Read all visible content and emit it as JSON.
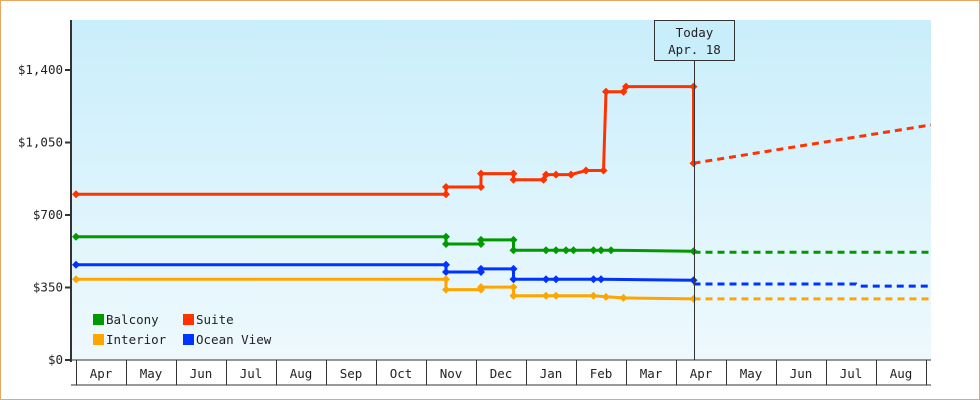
{
  "chart_data": {
    "type": "line",
    "title": "",
    "xlabel": "",
    "ylabel": "",
    "ylim": [
      0,
      1680
    ],
    "y_ticks": [
      {
        "value": 0,
        "label": "$0"
      },
      {
        "value": 350,
        "label": "$350"
      },
      {
        "value": 700,
        "label": "$700"
      },
      {
        "value": 1050,
        "label": "$1,050"
      },
      {
        "value": 1400,
        "label": "$1,400"
      }
    ],
    "x_months": [
      "Apr",
      "May",
      "Jun",
      "Jul",
      "Aug",
      "Sep",
      "Oct",
      "Nov",
      "Dec",
      "Jan",
      "Feb",
      "Mar",
      "Apr",
      "May",
      "Jun",
      "Jul",
      "Aug"
    ],
    "today_marker": {
      "line1": "Today",
      "line2": "Apr. 18",
      "x_month_index": 12.35
    },
    "grid": false,
    "legend_position": "lower-left",
    "legend": [
      {
        "name": "Balcony",
        "color": "#009a00"
      },
      {
        "name": "Suite",
        "color": "#ff3300"
      },
      {
        "name": "Interior",
        "color": "#ffa500"
      },
      {
        "name": "Ocean View",
        "color": "#0033ff"
      }
    ],
    "series": [
      {
        "name": "Suite",
        "color": "#ff3300",
        "points": [
          {
            "m": 0.0,
            "v": 800
          },
          {
            "m": 7.4,
            "v": 800
          },
          {
            "m": 7.4,
            "v": 835
          },
          {
            "m": 8.1,
            "v": 835
          },
          {
            "m": 8.1,
            "v": 900
          },
          {
            "m": 8.75,
            "v": 900
          },
          {
            "m": 8.75,
            "v": 870
          },
          {
            "m": 9.35,
            "v": 870
          },
          {
            "m": 9.4,
            "v": 895
          },
          {
            "m": 9.6,
            "v": 895
          },
          {
            "m": 9.9,
            "v": 895
          },
          {
            "m": 10.2,
            "v": 915
          },
          {
            "m": 10.55,
            "v": 915
          },
          {
            "m": 10.6,
            "v": 1295
          },
          {
            "m": 10.95,
            "v": 1295
          },
          {
            "m": 11.0,
            "v": 1320
          },
          {
            "m": 12.35,
            "v": 1320
          },
          {
            "m": 12.35,
            "v": 950
          }
        ],
        "projection": [
          {
            "m": 12.35,
            "v": 950
          },
          {
            "m": 17.1,
            "v": 1135
          }
        ]
      },
      {
        "name": "Balcony",
        "color": "#009a00",
        "points": [
          {
            "m": 0.0,
            "v": 595
          },
          {
            "m": 7.4,
            "v": 595
          },
          {
            "m": 7.4,
            "v": 560
          },
          {
            "m": 8.1,
            "v": 560
          },
          {
            "m": 8.1,
            "v": 580
          },
          {
            "m": 8.75,
            "v": 580
          },
          {
            "m": 8.75,
            "v": 530
          },
          {
            "m": 9.4,
            "v": 530
          },
          {
            "m": 9.6,
            "v": 530
          },
          {
            "m": 9.8,
            "v": 530
          },
          {
            "m": 9.95,
            "v": 530
          },
          {
            "m": 10.35,
            "v": 530
          },
          {
            "m": 10.5,
            "v": 530
          },
          {
            "m": 10.7,
            "v": 530
          },
          {
            "m": 12.35,
            "v": 525
          }
        ],
        "projection": [
          {
            "m": 12.35,
            "v": 520
          },
          {
            "m": 17.1,
            "v": 520
          }
        ]
      },
      {
        "name": "Ocean View",
        "color": "#0033ff",
        "points": [
          {
            "m": 0.0,
            "v": 460
          },
          {
            "m": 7.4,
            "v": 460
          },
          {
            "m": 7.4,
            "v": 425
          },
          {
            "m": 8.1,
            "v": 425
          },
          {
            "m": 8.1,
            "v": 440
          },
          {
            "m": 8.75,
            "v": 440
          },
          {
            "m": 8.75,
            "v": 390
          },
          {
            "m": 9.4,
            "v": 390
          },
          {
            "m": 9.6,
            "v": 390
          },
          {
            "m": 10.35,
            "v": 390
          },
          {
            "m": 10.5,
            "v": 390
          },
          {
            "m": 12.35,
            "v": 385
          }
        ],
        "projection": [
          {
            "m": 12.35,
            "v": 367
          },
          {
            "m": 15.6,
            "v": 367
          },
          {
            "m": 15.65,
            "v": 357
          },
          {
            "m": 17.1,
            "v": 357
          }
        ]
      },
      {
        "name": "Interior",
        "color": "#ffa500",
        "points": [
          {
            "m": 0.0,
            "v": 390
          },
          {
            "m": 7.4,
            "v": 390
          },
          {
            "m": 7.4,
            "v": 340
          },
          {
            "m": 8.1,
            "v": 340
          },
          {
            "m": 8.1,
            "v": 352
          },
          {
            "m": 8.75,
            "v": 352
          },
          {
            "m": 8.75,
            "v": 310
          },
          {
            "m": 9.4,
            "v": 310
          },
          {
            "m": 9.6,
            "v": 310
          },
          {
            "m": 10.35,
            "v": 310
          },
          {
            "m": 10.6,
            "v": 305
          },
          {
            "m": 10.95,
            "v": 300
          },
          {
            "m": 12.35,
            "v": 295
          }
        ],
        "projection": [
          {
            "m": 12.35,
            "v": 295
          },
          {
            "m": 17.1,
            "v": 295
          }
        ]
      }
    ]
  }
}
